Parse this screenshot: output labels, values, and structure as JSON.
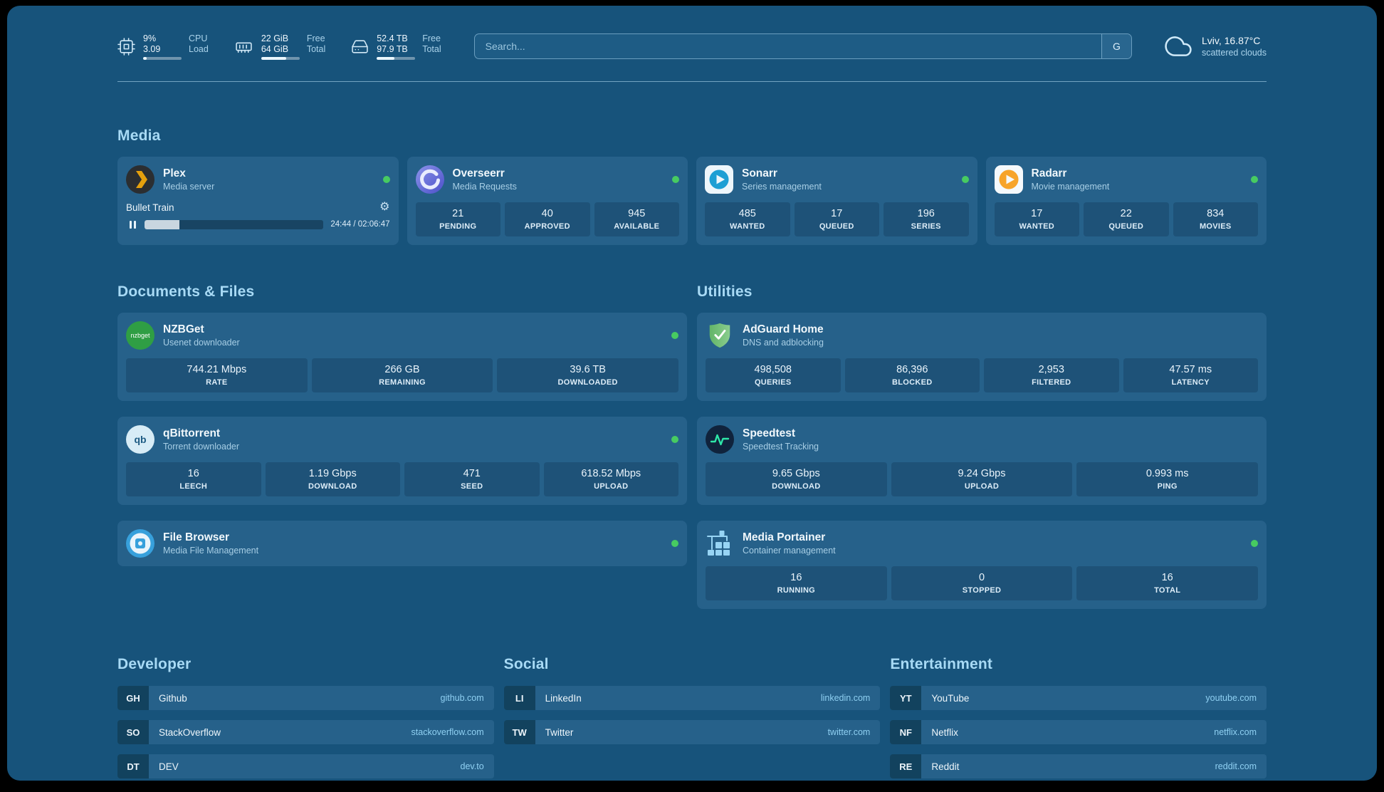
{
  "topbar": {
    "metrics": [
      {
        "name": "cpu",
        "values": [
          "9%",
          "3.09"
        ],
        "labels": [
          "CPU",
          "Load"
        ],
        "progress": 9
      },
      {
        "name": "ram",
        "values": [
          "22 GiB",
          "64 GiB"
        ],
        "labels": [
          "Free",
          "Total"
        ],
        "progress": 66
      },
      {
        "name": "disk",
        "values": [
          "52.4 TB",
          "97.9 TB"
        ],
        "labels": [
          "Free",
          "Total"
        ],
        "progress": 46
      }
    ],
    "search": {
      "placeholder": "Search...",
      "engine_button": "G"
    },
    "weather": {
      "location": "Lviv, 16.87°C",
      "condition": "scattered clouds"
    }
  },
  "sections": {
    "media": "Media",
    "documents": "Documents & Files",
    "utilities": "Utilities",
    "developer": "Developer",
    "social": "Social",
    "entertainment": "Entertainment"
  },
  "colors": {
    "background": "#17537b",
    "card": "#26618a",
    "stat_box": "#1e5278",
    "heading_text": "#a8daf5",
    "status_online": "#47cb61"
  },
  "icons": {
    "gear": "⚙",
    "nzbget_label": "nzbget",
    "qb_label": "qb"
  },
  "apps": {
    "plex": {
      "name": "Plex",
      "subtitle": "Media server",
      "now_playing": "Bullet Train",
      "time": "24:44 / 02:06:47",
      "progress": 19.5
    },
    "overseerr": {
      "name": "Overseerr",
      "subtitle": "Media Requests",
      "stats": [
        {
          "value": "21",
          "label": "PENDING"
        },
        {
          "value": "40",
          "label": "APPROVED"
        },
        {
          "value": "945",
          "label": "AVAILABLE"
        }
      ]
    },
    "sonarr": {
      "name": "Sonarr",
      "subtitle": "Series management",
      "stats": [
        {
          "value": "485",
          "label": "WANTED"
        },
        {
          "value": "17",
          "label": "QUEUED"
        },
        {
          "value": "196",
          "label": "SERIES"
        }
      ]
    },
    "radarr": {
      "name": "Radarr",
      "subtitle": "Movie management",
      "stats": [
        {
          "value": "17",
          "label": "WANTED"
        },
        {
          "value": "22",
          "label": "QUEUED"
        },
        {
          "value": "834",
          "label": "MOVIES"
        }
      ]
    },
    "nzbget": {
      "name": "NZBGet",
      "subtitle": "Usenet downloader",
      "stats": [
        {
          "value": "744.21 Mbps",
          "label": "RATE"
        },
        {
          "value": "266 GB",
          "label": "REMAINING"
        },
        {
          "value": "39.6 TB",
          "label": "DOWNLOADED"
        }
      ]
    },
    "qbittorrent": {
      "name": "qBittorrent",
      "subtitle": "Torrent downloader",
      "stats": [
        {
          "value": "16",
          "label": "LEECH"
        },
        {
          "value": "1.19 Gbps",
          "label": "DOWNLOAD"
        },
        {
          "value": "471",
          "label": "SEED"
        },
        {
          "value": "618.52 Mbps",
          "label": "UPLOAD"
        }
      ]
    },
    "filebrowser": {
      "name": "File Browser",
      "subtitle": "Media File Management"
    },
    "adguard": {
      "name": "AdGuard Home",
      "subtitle": "DNS and adblocking",
      "stats": [
        {
          "value": "498,508",
          "label": "QUERIES"
        },
        {
          "value": "86,396",
          "label": "BLOCKED"
        },
        {
          "value": "2,953",
          "label": "FILTERED"
        },
        {
          "value": "47.57 ms",
          "label": "LATENCY"
        }
      ]
    },
    "speedtest": {
      "name": "Speedtest",
      "subtitle": "Speedtest Tracking",
      "stats": [
        {
          "value": "9.65 Gbps",
          "label": "DOWNLOAD"
        },
        {
          "value": "9.24 Gbps",
          "label": "UPLOAD"
        },
        {
          "value": "0.993 ms",
          "label": "PING"
        }
      ]
    },
    "portainer": {
      "name": "Media Portainer",
      "subtitle": "Container management",
      "stats": [
        {
          "value": "16",
          "label": "RUNNING"
        },
        {
          "value": "0",
          "label": "STOPPED"
        },
        {
          "value": "16",
          "label": "TOTAL"
        }
      ]
    }
  },
  "bookmarks": {
    "developer": [
      {
        "abbr": "GH",
        "name": "Github",
        "url": "github.com"
      },
      {
        "abbr": "SO",
        "name": "StackOverflow",
        "url": "stackoverflow.com"
      },
      {
        "abbr": "DT",
        "name": "DEV",
        "url": "dev.to"
      }
    ],
    "social": [
      {
        "abbr": "LI",
        "name": "LinkedIn",
        "url": "linkedin.com"
      },
      {
        "abbr": "TW",
        "name": "Twitter",
        "url": "twitter.com"
      }
    ],
    "entertainment": [
      {
        "abbr": "YT",
        "name": "YouTube",
        "url": "youtube.com"
      },
      {
        "abbr": "NF",
        "name": "Netflix",
        "url": "netflix.com"
      },
      {
        "abbr": "RE",
        "name": "Reddit",
        "url": "reddit.com"
      }
    ]
  }
}
